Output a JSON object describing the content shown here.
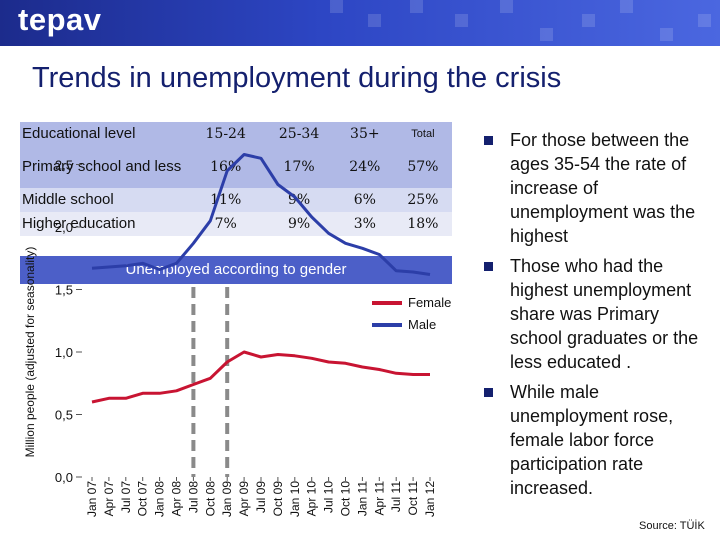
{
  "header": {
    "logo": "tepav"
  },
  "title": "Trends in unemployment during the crisis",
  "education_table": {
    "headers": [
      "Educational level",
      "15-24",
      "25-34",
      "35+",
      "Total"
    ],
    "rows": [
      [
        "Primary school and less",
        "16%",
        "17%",
        "24%",
        "57%"
      ],
      [
        "Middle school",
        "11%",
        "9%",
        "6%",
        "25%"
      ],
      [
        "Higher education",
        "7%",
        "9%",
        "3%",
        "18%"
      ]
    ]
  },
  "chart_data": {
    "type": "line",
    "title": "Unemployed according to gender",
    "ylabel": "Million people (adjusted for seasonality)",
    "ylim": [
      0,
      2.75
    ],
    "yticks": [
      "0,0",
      "0,5",
      "1,0",
      "1,5",
      "2,0",
      "2,5"
    ],
    "x": [
      "Jan 07",
      "Apr 07",
      "Jul 07",
      "Oct 07",
      "Jan 08",
      "Apr 08",
      "Jul 08",
      "Oct 08",
      "Jan 09",
      "Apr 09",
      "Jul 09",
      "Oct 09",
      "Jan 10",
      "Apr 10",
      "Jul 10",
      "Oct 10",
      "Jan 11",
      "Apr 11",
      "Jul 11",
      "Oct 11",
      "Jan 12"
    ],
    "legend_position": "top-right",
    "markers": [
      "Jul 08",
      "Jan 09"
    ],
    "series": [
      {
        "name": "Female",
        "color": "#c81432",
        "values": [
          0.6,
          0.63,
          0.63,
          0.67,
          0.67,
          0.69,
          0.74,
          0.79,
          0.92,
          1.0,
          0.96,
          0.98,
          0.97,
          0.95,
          0.92,
          0.91,
          0.88,
          0.86,
          0.83,
          0.82,
          0.82
        ]
      },
      {
        "name": "Male",
        "color": "#2c3ea8",
        "values": [
          1.67,
          1.68,
          1.69,
          1.71,
          1.66,
          1.71,
          1.87,
          2.05,
          2.45,
          2.58,
          2.55,
          2.34,
          2.24,
          2.08,
          1.95,
          1.87,
          1.83,
          1.78,
          1.65,
          1.64,
          1.62
        ]
      }
    ]
  },
  "bullets": [
    "For those between the ages 35-54 the rate of increase of unemployment was the highest",
    "Those who had the highest unemployment share was Primary school graduates or the less educated .",
    "While male unemployment rose, female labor force participation rate increased."
  ],
  "source": "Source: TÜİK",
  "colors": {
    "header": "#2238b0",
    "band": "#4c5fc8",
    "title": "#14206e"
  }
}
